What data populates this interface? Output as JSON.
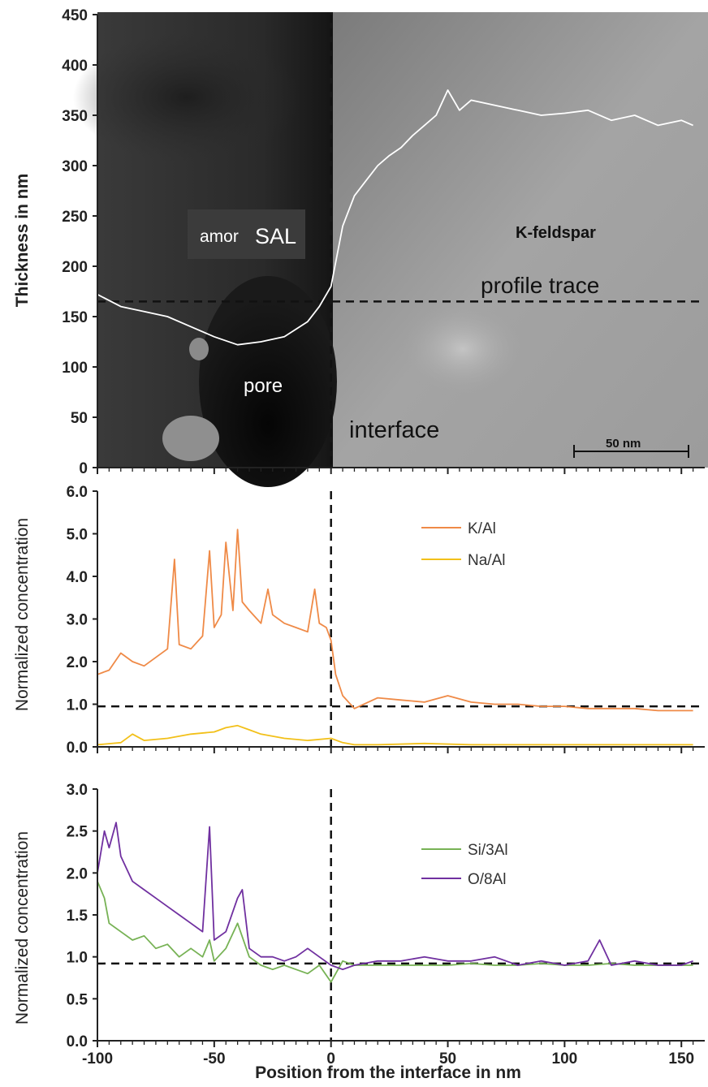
{
  "chart_data": [
    {
      "type": "line",
      "panel": "top",
      "ylabel": "Thickness in nm",
      "ylim": [
        0,
        450
      ],
      "yticks": [
        "0",
        "50",
        "100",
        "150",
        "200",
        "250",
        "300",
        "350",
        "400",
        "450"
      ],
      "xlim": [
        -100,
        160
      ],
      "background": "TEM image",
      "annotations": {
        "amor": "amor",
        "sal": "SAL",
        "kfeldspar": "K-feldspar",
        "profile_trace": "profile trace",
        "pore": "pore",
        "interface": "interface",
        "scalebar": "50 nm"
      },
      "series": [
        {
          "color": "#ffffff",
          "x": [
            -100,
            -90,
            -80,
            -70,
            -60,
            -50,
            -40,
            -30,
            -20,
            -10,
            -5,
            0,
            5,
            10,
            15,
            20,
            25,
            30,
            35,
            40,
            45,
            50,
            55,
            60,
            70,
            80,
            90,
            100,
            110,
            120,
            130,
            140,
            150,
            155
          ],
          "y": [
            172,
            160,
            155,
            150,
            140,
            130,
            122,
            125,
            130,
            145,
            160,
            180,
            240,
            270,
            285,
            300,
            310,
            318,
            330,
            340,
            350,
            375,
            355,
            365,
            360,
            355,
            350,
            352,
            355,
            345,
            350,
            340,
            345,
            340
          ]
        }
      ],
      "reference_lines": {
        "y": 165,
        "x": 0
      }
    },
    {
      "type": "line",
      "panel": "middle",
      "ylabel": "Normalized concentration",
      "ylim": [
        0,
        6
      ],
      "yticks": [
        "0.0",
        "1.0",
        "2.0",
        "3.0",
        "4.0",
        "5.0",
        "6.0"
      ],
      "xlim": [
        -100,
        160
      ],
      "legend_position": "top-right",
      "series": [
        {
          "name": "K/Al",
          "color": "#ef8a47",
          "x": [
            -100,
            -95,
            -90,
            -85,
            -80,
            -75,
            -70,
            -67,
            -65,
            -60,
            -55,
            -52,
            -50,
            -47,
            -45,
            -42,
            -40,
            -38,
            -35,
            -30,
            -27,
            -25,
            -20,
            -15,
            -10,
            -7,
            -5,
            -2,
            0,
            2,
            5,
            10,
            20,
            30,
            40,
            50,
            60,
            70,
            80,
            90,
            100,
            110,
            120,
            130,
            140,
            150,
            155
          ],
          "y": [
            1.7,
            1.8,
            2.2,
            2.0,
            1.9,
            2.1,
            2.3,
            4.4,
            2.4,
            2.3,
            2.6,
            4.6,
            2.8,
            3.1,
            4.8,
            3.2,
            5.1,
            3.4,
            3.2,
            2.9,
            3.7,
            3.1,
            2.9,
            2.8,
            2.7,
            3.7,
            2.9,
            2.8,
            2.5,
            1.7,
            1.2,
            0.9,
            1.15,
            1.1,
            1.05,
            1.2,
            1.05,
            1.0,
            1.0,
            0.95,
            0.95,
            0.9,
            0.9,
            0.9,
            0.85,
            0.85,
            0.85
          ]
        },
        {
          "name": "Na/Al",
          "color": "#f2c019",
          "x": [
            -100,
            -90,
            -85,
            -80,
            -70,
            -60,
            -50,
            -45,
            -40,
            -35,
            -30,
            -20,
            -10,
            0,
            5,
            10,
            20,
            40,
            60,
            80,
            100,
            120,
            140,
            155
          ],
          "y": [
            0.05,
            0.1,
            0.3,
            0.15,
            0.2,
            0.3,
            0.35,
            0.45,
            0.5,
            0.4,
            0.3,
            0.2,
            0.15,
            0.2,
            0.1,
            0.05,
            0.05,
            0.08,
            0.05,
            0.05,
            0.05,
            0.05,
            0.05,
            0.05
          ]
        }
      ],
      "reference_lines": {
        "y": 0.95,
        "x": 0
      }
    },
    {
      "type": "line",
      "panel": "bottom",
      "ylabel": "Normalized concentration",
      "xlabel": "Position from the interface in nm",
      "ylim": [
        0,
        3
      ],
      "yticks": [
        "0.0",
        "0.5",
        "1.0",
        "1.5",
        "2.0",
        "2.5",
        "3.0"
      ],
      "xlim": [
        -100,
        160
      ],
      "xticks": [
        "-100",
        "-50",
        "0",
        "50",
        "100",
        "150"
      ],
      "legend_position": "top-right",
      "series": [
        {
          "name": "Si/3Al",
          "color": "#77b255",
          "x": [
            -100,
            -97,
            -95,
            -90,
            -85,
            -80,
            -75,
            -70,
            -65,
            -60,
            -55,
            -52,
            -50,
            -45,
            -40,
            -35,
            -30,
            -25,
            -20,
            -15,
            -10,
            -5,
            0,
            5,
            10,
            20,
            30,
            40,
            50,
            60,
            70,
            80,
            90,
            100,
            110,
            120,
            130,
            140,
            150,
            155
          ],
          "y": [
            1.9,
            1.7,
            1.4,
            1.3,
            1.2,
            1.25,
            1.1,
            1.15,
            1.0,
            1.1,
            1.0,
            1.2,
            0.95,
            1.1,
            1.4,
            1.0,
            0.9,
            0.85,
            0.9,
            0.85,
            0.8,
            0.9,
            0.7,
            0.95,
            0.9,
            0.9,
            0.9,
            0.9,
            0.9,
            0.92,
            0.9,
            0.9,
            0.92,
            0.9,
            0.9,
            0.92,
            0.9,
            0.9,
            0.9,
            0.9
          ]
        },
        {
          "name": "O/8Al",
          "color": "#7030a0",
          "x": [
            -100,
            -97,
            -95,
            -92,
            -90,
            -85,
            -80,
            -75,
            -70,
            -65,
            -60,
            -55,
            -52,
            -50,
            -45,
            -40,
            -38,
            -35,
            -30,
            -25,
            -20,
            -15,
            -10,
            -5,
            0,
            5,
            10,
            20,
            30,
            40,
            50,
            60,
            70,
            80,
            90,
            100,
            110,
            115,
            120,
            130,
            140,
            150,
            155
          ],
          "y": [
            2.0,
            2.5,
            2.3,
            2.6,
            2.2,
            1.9,
            1.8,
            1.7,
            1.6,
            1.5,
            1.4,
            1.3,
            2.55,
            1.2,
            1.3,
            1.7,
            1.8,
            1.1,
            1.0,
            1.0,
            0.95,
            1.0,
            1.1,
            1.0,
            0.9,
            0.85,
            0.9,
            0.95,
            0.95,
            1.0,
            0.95,
            0.95,
            1.0,
            0.9,
            0.95,
            0.9,
            0.95,
            1.2,
            0.9,
            0.95,
            0.9,
            0.9,
            0.95
          ]
        }
      ],
      "reference_lines": {
        "y": 0.92,
        "x": 0
      }
    }
  ]
}
